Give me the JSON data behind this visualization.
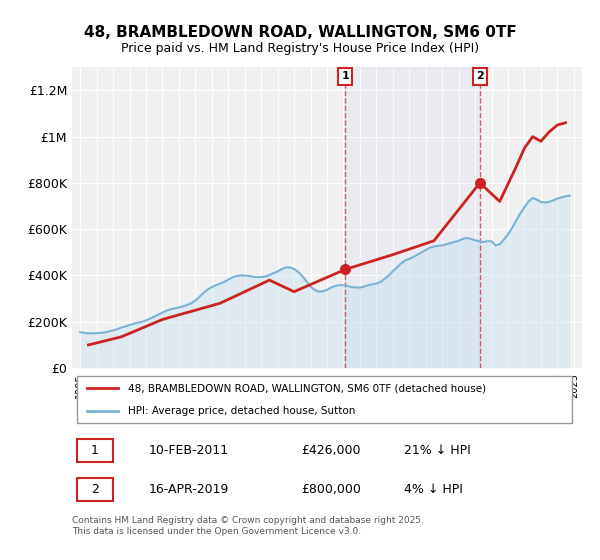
{
  "title": "48, BRAMBLEDOWN ROAD, WALLINGTON, SM6 0TF",
  "subtitle": "Price paid vs. HM Land Registry's House Price Index (HPI)",
  "ylabel_ticks": [
    "£0",
    "£200K",
    "£400K",
    "£600K",
    "£800K",
    "£1M",
    "£1.2M"
  ],
  "ytick_values": [
    0,
    200000,
    400000,
    600000,
    800000,
    1000000,
    1200000
  ],
  "ylim": [
    0,
    1300000
  ],
  "xlabel": "",
  "line1_color": "#cc2222",
  "line2_color": "#7ab3d4",
  "line2_fill_color": "#c5dff0",
  "vline_color": "#cc2222",
  "vline_style": "dashed",
  "marker1_date": 2011.1,
  "marker2_date": 2019.29,
  "marker1_value": 426000,
  "marker2_value": 800000,
  "annotation1_label": "1",
  "annotation2_label": "2",
  "legend_line1": "48, BRAMBLEDOWN ROAD, WALLINGTON, SM6 0TF (detached house)",
  "legend_line2": "HPI: Average price, detached house, Sutton",
  "table_row1": [
    "1",
    "10-FEB-2011",
    "£426,000",
    "21% ↓ HPI"
  ],
  "table_row2": [
    "2",
    "16-APR-2019",
    "£800,000",
    "4% ↓ HPI"
  ],
  "footer": "Contains HM Land Registry data © Crown copyright and database right 2025.\nThis data is licensed under the Open Government Licence v3.0.",
  "bg_color": "#ffffff",
  "plot_bg_color": "#f0f0f0",
  "hpi_data": {
    "years": [
      1995.0,
      1995.25,
      1995.5,
      1995.75,
      1996.0,
      1996.25,
      1996.5,
      1996.75,
      1997.0,
      1997.25,
      1997.5,
      1997.75,
      1998.0,
      1998.25,
      1998.5,
      1998.75,
      1999.0,
      1999.25,
      1999.5,
      1999.75,
      2000.0,
      2000.25,
      2000.5,
      2000.75,
      2001.0,
      2001.25,
      2001.5,
      2001.75,
      2002.0,
      2002.25,
      2002.5,
      2002.75,
      2003.0,
      2003.25,
      2003.5,
      2003.75,
      2004.0,
      2004.25,
      2004.5,
      2004.75,
      2005.0,
      2005.25,
      2005.5,
      2005.75,
      2006.0,
      2006.25,
      2006.5,
      2006.75,
      2007.0,
      2007.25,
      2007.5,
      2007.75,
      2008.0,
      2008.25,
      2008.5,
      2008.75,
      2009.0,
      2009.25,
      2009.5,
      2009.75,
      2010.0,
      2010.25,
      2010.5,
      2010.75,
      2011.0,
      2011.25,
      2011.5,
      2011.75,
      2012.0,
      2012.25,
      2012.5,
      2012.75,
      2013.0,
      2013.25,
      2013.5,
      2013.75,
      2014.0,
      2014.25,
      2014.5,
      2014.75,
      2015.0,
      2015.25,
      2015.5,
      2015.75,
      2016.0,
      2016.25,
      2016.5,
      2016.75,
      2017.0,
      2017.25,
      2017.5,
      2017.75,
      2018.0,
      2018.25,
      2018.5,
      2018.75,
      2019.0,
      2019.25,
      2019.5,
      2019.75,
      2020.0,
      2020.25,
      2020.5,
      2020.75,
      2021.0,
      2021.25,
      2021.5,
      2021.75,
      2022.0,
      2022.25,
      2022.5,
      2022.75,
      2023.0,
      2023.25,
      2023.5,
      2023.75,
      2024.0,
      2024.25,
      2024.5,
      2024.75
    ],
    "values": [
      155000,
      152000,
      150000,
      150000,
      151000,
      152000,
      154000,
      158000,
      163000,
      168000,
      175000,
      180000,
      186000,
      191000,
      196000,
      200000,
      206000,
      214000,
      222000,
      231000,
      240000,
      248000,
      254000,
      258000,
      262000,
      267000,
      273000,
      280000,
      292000,
      308000,
      325000,
      340000,
      350000,
      358000,
      365000,
      372000,
      382000,
      392000,
      398000,
      400000,
      400000,
      398000,
      395000,
      393000,
      393000,
      396000,
      402000,
      410000,
      418000,
      428000,
      435000,
      435000,
      428000,
      415000,
      398000,
      375000,
      352000,
      338000,
      330000,
      332000,
      338000,
      348000,
      355000,
      358000,
      358000,
      355000,
      350000,
      348000,
      348000,
      352000,
      358000,
      362000,
      365000,
      372000,
      385000,
      400000,
      418000,
      435000,
      452000,
      465000,
      472000,
      480000,
      490000,
      500000,
      510000,
      520000,
      525000,
      528000,
      530000,
      535000,
      540000,
      545000,
      550000,
      558000,
      562000,
      558000,
      552000,
      548000,
      545000,
      548000,
      548000,
      530000,
      535000,
      555000,
      578000,
      605000,
      638000,
      668000,
      695000,
      720000,
      735000,
      728000,
      718000,
      715000,
      718000,
      725000,
      732000,
      738000,
      742000,
      745000
    ]
  },
  "price_data": {
    "years": [
      1995.5,
      1997.5,
      2000.0,
      2003.5,
      2006.5,
      2008.0,
      2011.1,
      2014.0,
      2016.5,
      2019.29,
      2020.5,
      2021.5,
      2022.0,
      2022.5,
      2023.0,
      2023.5,
      2024.0,
      2024.5
    ],
    "values": [
      100000,
      135000,
      210000,
      280000,
      380000,
      330000,
      426000,
      490000,
      550000,
      800000,
      720000,
      870000,
      950000,
      1000000,
      980000,
      1020000,
      1050000,
      1060000
    ]
  }
}
